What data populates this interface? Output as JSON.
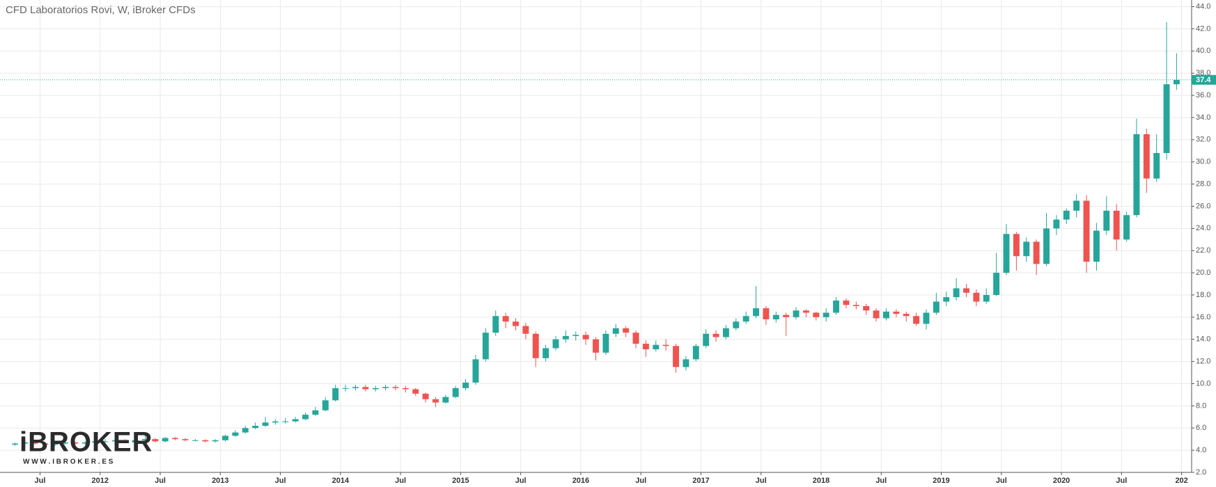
{
  "chart_data": {
    "type": "candlestick",
    "title": "CFD Laboratorios Rovi, W, iBroker CFDs",
    "logo": {
      "name": "iBROKER",
      "url": "W W W . I B R O K E R . E S"
    },
    "up_color": "#26a69a",
    "down_color": "#ef5350",
    "grid": true,
    "x": [
      "2011-04",
      "2011-05",
      "2011-06",
      "2011-07",
      "2011-08",
      "2011-09",
      "2011-10",
      "2011-11",
      "2011-12",
      "2012-01",
      "2012-02",
      "2012-03",
      "2012-04",
      "2012-05",
      "2012-06",
      "2012-07",
      "2012-08",
      "2012-09",
      "2012-10",
      "2012-11",
      "2012-12",
      "2013-01",
      "2013-02",
      "2013-03",
      "2013-04",
      "2013-05",
      "2013-06",
      "2013-07",
      "2013-08",
      "2013-09",
      "2013-10",
      "2013-11",
      "2013-12",
      "2014-01",
      "2014-02",
      "2014-03",
      "2014-04",
      "2014-05",
      "2014-06",
      "2014-07",
      "2014-08",
      "2014-09",
      "2014-10",
      "2014-11",
      "2014-12",
      "2015-01",
      "2015-02",
      "2015-03",
      "2015-04",
      "2015-05",
      "2015-06",
      "2015-07",
      "2015-08",
      "2015-09",
      "2015-10",
      "2015-11",
      "2015-12",
      "2016-01",
      "2016-02",
      "2016-03",
      "2016-04",
      "2016-05",
      "2016-06",
      "2016-07",
      "2016-08",
      "2016-09",
      "2016-10",
      "2016-11",
      "2016-12",
      "2017-01",
      "2017-02",
      "2017-03",
      "2017-04",
      "2017-05",
      "2017-06",
      "2017-07",
      "2017-08",
      "2017-09",
      "2017-10",
      "2017-11",
      "2017-12",
      "2018-01",
      "2018-02",
      "2018-03",
      "2018-04",
      "2018-05",
      "2018-06",
      "2018-07",
      "2018-08",
      "2018-09",
      "2018-10",
      "2018-11",
      "2018-12",
      "2019-01",
      "2019-02",
      "2019-03",
      "2019-04",
      "2019-05",
      "2019-06",
      "2019-07",
      "2019-08",
      "2019-09",
      "2019-10",
      "2019-11",
      "2019-12",
      "2020-01",
      "2020-02",
      "2020-03",
      "2020-04",
      "2020-05",
      "2020-06",
      "2020-07",
      "2020-08",
      "2020-09",
      "2020-10",
      "2020-11",
      "2020-12"
    ],
    "open": [
      4.5,
      4.6,
      4.7,
      4.6,
      4.5,
      4.6,
      4.7,
      4.6,
      4.7,
      4.8,
      4.8,
      4.9,
      4.7,
      4.9,
      5.0,
      4.8,
      5.1,
      5.0,
      4.9,
      4.9,
      4.8,
      4.9,
      5.3,
      5.6,
      6.0,
      6.2,
      6.5,
      6.6,
      6.6,
      6.8,
      7.2,
      7.6,
      8.5,
      9.6,
      9.6,
      9.7,
      9.5,
      9.6,
      9.7,
      9.6,
      9.5,
      9.1,
      8.6,
      8.3,
      8.8,
      9.6,
      10.1,
      12.2,
      14.6,
      16.1,
      15.6,
      15.2,
      14.5,
      12.3,
      13.2,
      14.0,
      14.3,
      14.4,
      14.0,
      12.8,
      14.5,
      15.0,
      14.6,
      13.6,
      13.1,
      13.5,
      13.4,
      11.5,
      12.2,
      13.4,
      14.5,
      14.2,
      15.0,
      15.6,
      16.1,
      16.8,
      15.8,
      16.2,
      16.0,
      16.6,
      16.4,
      16.0,
      16.4,
      17.5,
      17.1,
      17.0,
      16.6,
      15.9,
      16.5,
      16.3,
      16.1,
      15.4,
      16.4,
      17.4,
      17.8,
      18.6,
      18.2,
      17.4,
      18.0,
      20.0,
      23.5,
      21.5,
      22.8,
      20.8,
      24.0,
      24.8,
      25.6,
      26.5,
      21.0,
      23.8,
      25.6,
      23.0,
      25.2,
      32.5,
      28.5,
      30.8,
      37.0
    ],
    "high": [
      4.7,
      4.8,
      4.8,
      4.7,
      4.7,
      4.8,
      4.8,
      4.8,
      4.9,
      5.0,
      5.1,
      5.0,
      5.0,
      5.4,
      5.1,
      5.2,
      5.2,
      5.1,
      5.0,
      5.0,
      5.0,
      5.4,
      5.8,
      6.2,
      6.5,
      7.0,
      6.8,
      6.9,
      7.0,
      7.4,
      7.9,
      8.8,
      9.9,
      9.9,
      9.9,
      9.9,
      9.8,
      9.9,
      9.9,
      9.8,
      9.6,
      9.2,
      8.8,
      9.0,
      9.8,
      10.4,
      12.6,
      15.0,
      16.6,
      16.4,
      15.9,
      15.5,
      14.7,
      13.5,
      14.3,
      14.8,
      14.7,
      14.7,
      14.2,
      14.8,
      15.4,
      15.2,
      14.8,
      13.9,
      13.9,
      14.0,
      13.6,
      12.5,
      13.6,
      14.9,
      14.8,
      15.3,
      15.9,
      16.5,
      18.8,
      17.0,
      16.5,
      16.4,
      16.9,
      16.7,
      16.5,
      16.8,
      17.8,
      17.7,
      17.4,
      17.2,
      16.8,
      16.8,
      16.7,
      16.5,
      16.4,
      16.7,
      18.2,
      18.3,
      19.5,
      19.0,
      18.5,
      18.6,
      21.8,
      24.4,
      23.7,
      23.2,
      23.0,
      25.4,
      25.2,
      25.8,
      27.1,
      27.0,
      24.5,
      26.9,
      26.2,
      25.5,
      33.9,
      33.0,
      32.5,
      42.6,
      39.8
    ],
    "low": [
      4.4,
      4.5,
      4.5,
      4.4,
      4.4,
      4.5,
      4.5,
      4.5,
      4.6,
      4.6,
      4.7,
      4.6,
      4.6,
      4.8,
      4.7,
      4.7,
      4.9,
      4.8,
      4.8,
      4.7,
      4.7,
      4.8,
      5.2,
      5.5,
      5.9,
      6.1,
      6.3,
      6.4,
      6.5,
      6.7,
      7.1,
      7.5,
      8.4,
      9.3,
      9.4,
      9.3,
      9.3,
      9.4,
      9.4,
      9.2,
      8.9,
      8.3,
      7.9,
      8.2,
      8.7,
      9.4,
      9.9,
      12.0,
      14.3,
      15.0,
      14.8,
      14.0,
      11.5,
      12.0,
      13.0,
      13.7,
      13.9,
      13.5,
      12.1,
      12.6,
      14.2,
      14.2,
      13.2,
      12.4,
      12.9,
      13.0,
      11.0,
      11.2,
      12.0,
      13.2,
      13.8,
      14.0,
      14.8,
      15.4,
      15.9,
      15.3,
      15.5,
      14.3,
      15.8,
      16.0,
      15.7,
      15.6,
      16.2,
      16.8,
      16.7,
      16.2,
      15.6,
      15.7,
      16.0,
      15.6,
      15.2,
      14.9,
      16.2,
      17.0,
      17.5,
      17.8,
      17.0,
      17.2,
      17.9,
      19.8,
      20.2,
      21.0,
      19.8,
      20.6,
      23.4,
      24.4,
      25.0,
      20.0,
      20.2,
      23.4,
      22.0,
      22.8,
      25.0,
      27.2,
      28.2,
      30.2,
      36.5
    ],
    "close": [
      4.6,
      4.7,
      4.6,
      4.5,
      4.6,
      4.7,
      4.6,
      4.7,
      4.8,
      4.8,
      4.9,
      4.7,
      4.9,
      5.0,
      4.8,
      5.1,
      5.0,
      4.9,
      4.9,
      4.8,
      4.9,
      5.3,
      5.6,
      6.0,
      6.2,
      6.5,
      6.6,
      6.6,
      6.8,
      7.2,
      7.6,
      8.5,
      9.6,
      9.6,
      9.7,
      9.5,
      9.6,
      9.7,
      9.6,
      9.5,
      9.1,
      8.6,
      8.3,
      8.8,
      9.6,
      10.1,
      12.2,
      14.6,
      16.1,
      15.6,
      15.2,
      14.5,
      12.3,
      13.2,
      14.0,
      14.3,
      14.4,
      14.0,
      12.8,
      14.5,
      15.0,
      14.6,
      13.6,
      13.1,
      13.5,
      13.4,
      11.5,
      12.2,
      13.4,
      14.5,
      14.2,
      15.0,
      15.6,
      16.1,
      16.8,
      15.8,
      16.2,
      16.0,
      16.6,
      16.4,
      16.0,
      16.4,
      17.5,
      17.1,
      17.0,
      16.6,
      15.9,
      16.5,
      16.3,
      16.1,
      15.4,
      16.4,
      17.4,
      17.8,
      18.6,
      18.2,
      17.4,
      18.0,
      20.0,
      23.5,
      21.5,
      22.8,
      20.8,
      24.0,
      24.8,
      25.6,
      26.5,
      21.0,
      23.8,
      25.6,
      23.0,
      25.2,
      32.5,
      28.5,
      30.8,
      37.0,
      37.4
    ],
    "xlim": [
      "2011-03",
      "2021-02"
    ],
    "xticks": [
      {
        "value": "2011-07",
        "label": "Jul"
      },
      {
        "value": "2012-01",
        "label": "2012"
      },
      {
        "value": "2012-07",
        "label": "Jul"
      },
      {
        "value": "2013-01",
        "label": "2013"
      },
      {
        "value": "2013-07",
        "label": "Jul"
      },
      {
        "value": "2014-01",
        "label": "2014"
      },
      {
        "value": "2014-07",
        "label": "Jul"
      },
      {
        "value": "2015-01",
        "label": "2015"
      },
      {
        "value": "2015-07",
        "label": "Jul"
      },
      {
        "value": "2016-01",
        "label": "2016"
      },
      {
        "value": "2016-07",
        "label": "Jul"
      },
      {
        "value": "2017-01",
        "label": "2017"
      },
      {
        "value": "2017-07",
        "label": "Jul"
      },
      {
        "value": "2018-01",
        "label": "2018"
      },
      {
        "value": "2018-07",
        "label": "Jul"
      },
      {
        "value": "2019-01",
        "label": "2019"
      },
      {
        "value": "2019-07",
        "label": "Jul"
      },
      {
        "value": "2020-01",
        "label": "2020"
      },
      {
        "value": "2020-07",
        "label": "Jul"
      },
      {
        "value": "2021-01",
        "label": "202"
      }
    ],
    "ylim": [
      2,
      44.6
    ],
    "yticks": [
      {
        "value": 2,
        "label": "2.0"
      },
      {
        "value": 4,
        "label": "4.0"
      },
      {
        "value": 6,
        "label": "6.0"
      },
      {
        "value": 8,
        "label": "8.0"
      },
      {
        "value": 10,
        "label": "10.0"
      },
      {
        "value": 12,
        "label": "12.0"
      },
      {
        "value": 14,
        "label": "14.0"
      },
      {
        "value": 16,
        "label": "16.0"
      },
      {
        "value": 18,
        "label": "18.0"
      },
      {
        "value": 20,
        "label": "20.0"
      },
      {
        "value": 22,
        "label": "22.0"
      },
      {
        "value": 24,
        "label": "24.0"
      },
      {
        "value": 26,
        "label": "26.0"
      },
      {
        "value": 28,
        "label": "28.0"
      },
      {
        "value": 30,
        "label": "30.0"
      },
      {
        "value": 32,
        "label": "32.0"
      },
      {
        "value": 34,
        "label": "34.0"
      },
      {
        "value": 36,
        "label": "36.0"
      },
      {
        "value": 38,
        "label": "38.0"
      },
      {
        "value": 40,
        "label": "40.0"
      },
      {
        "value": 42,
        "label": "42.0"
      },
      {
        "value": 44,
        "label": "44.0"
      }
    ]
  }
}
